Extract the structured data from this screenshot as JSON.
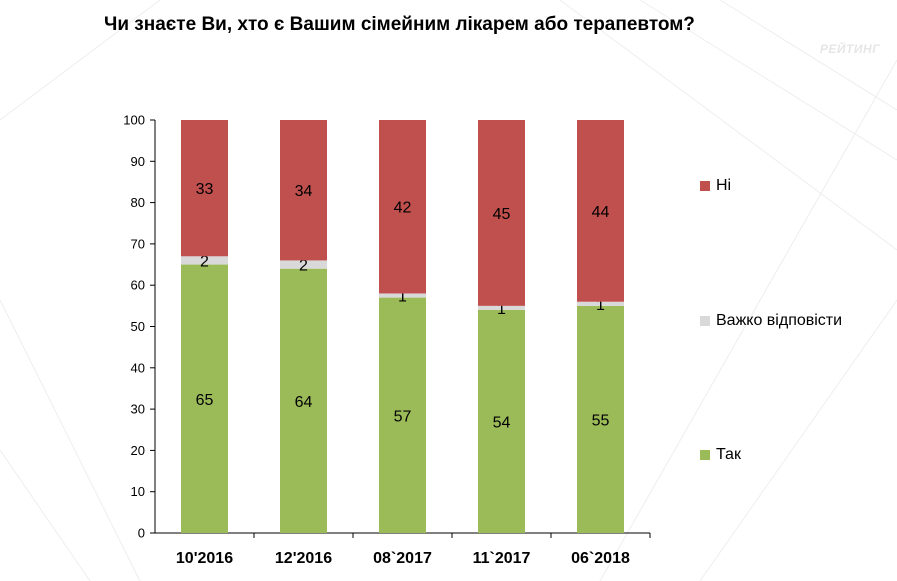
{
  "title": "Чи знаєте Ви, хто є Вашим сімейним лікарем або терапевтом?",
  "logo_text": "РЕЙТИНГ",
  "chart_data": {
    "type": "bar",
    "stacked": true,
    "categories": [
      "10'2016",
      "12'2016",
      "08`2017",
      "11`2017",
      "06`2018"
    ],
    "series": [
      {
        "name": "Так",
        "values": [
          65,
          64,
          57,
          54,
          55
        ],
        "color": "#9bbb59"
      },
      {
        "name": "Важко відповісти",
        "values": [
          2,
          2,
          1,
          1,
          1
        ],
        "color": "#d9d9d9"
      },
      {
        "name": "Ні",
        "values": [
          33,
          34,
          42,
          45,
          44
        ],
        "color": "#c0504d"
      }
    ],
    "yticks": [
      0,
      10,
      20,
      30,
      40,
      50,
      60,
      70,
      80,
      90,
      100
    ],
    "ylim": [
      0,
      100
    ],
    "legend_position": "right",
    "grid": false
  }
}
